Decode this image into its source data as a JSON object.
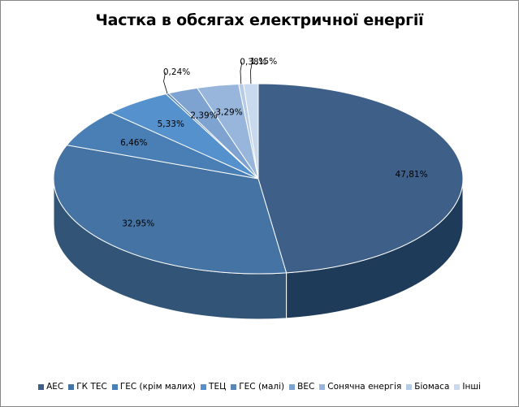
{
  "chart_data": {
    "type": "pie",
    "title": "Частка в обсягах електричної енергії",
    "slices": [
      {
        "name": "АЕС",
        "value": 47.81,
        "label": "47,81%",
        "color": "#3e5f88"
      },
      {
        "name": "ГК ТЕС",
        "value": 32.95,
        "label": "32,95%",
        "color": "#4574a4"
      },
      {
        "name": "ГЕС (крім малих)",
        "value": 6.46,
        "label": "6,46%",
        "color": "#4a7fb6"
      },
      {
        "name": "ТЕЦ",
        "value": 5.33,
        "label": "5,33%",
        "color": "#5591cc"
      },
      {
        "name": "ГЕС (малі)",
        "value": 0.24,
        "label": "0,24%",
        "color": "#5b86b8"
      },
      {
        "name": "ВЕС",
        "value": 2.39,
        "label": "2,39%",
        "color": "#7fa3d0"
      },
      {
        "name": "Сонячна енергія",
        "value": 3.29,
        "label": "3,29%",
        "color": "#98b6db"
      },
      {
        "name": "Біомаса",
        "value": 0.38,
        "label": "0,38%",
        "color": "#b5cbe6"
      },
      {
        "name": "Інші",
        "value": 1.15,
        "label": "1,15%",
        "color": "#c9d9ee"
      }
    ],
    "legend_position": "bottom"
  }
}
